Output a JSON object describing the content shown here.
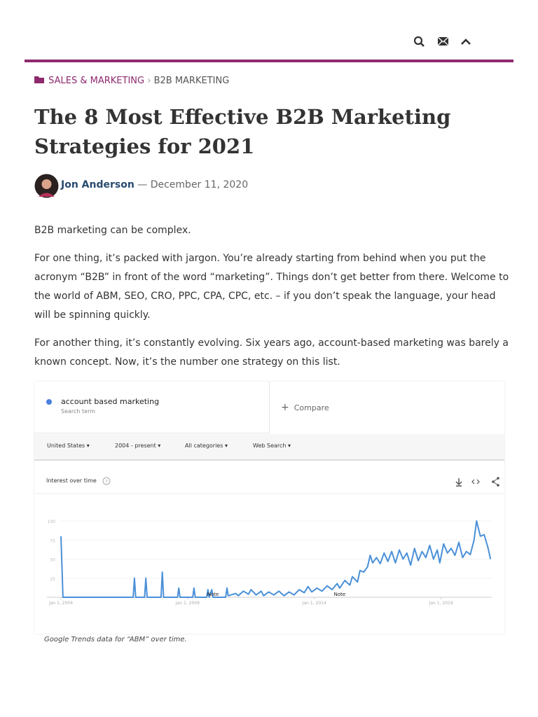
{
  "breadcrumb": {
    "category": "SALES & MARKETING",
    "subcategory": "B2B MARKETING"
  },
  "article": {
    "title": "The 8 Most Effective B2B Marketing Strategies for 2021",
    "author": "Jon Anderson",
    "date": "— December 11, 2020",
    "paragraphs": [
      "B2B marketing can be complex.",
      "For one thing, it’s packed with jargon. You’re already starting from behind when you put the acronym “B2B” in front of the word “marketing”. Things don’t get better from there. Welcome to the world of ABM, SEO, CRO, PPC, CPA, CPC, etc. – if you don’t speak the language, your head will be spinning quickly.",
      "For another thing, it’s constantly evolving. Six years ago, account-based marketing was barely a known concept. Now, it’s the number one strategy on this list."
    ],
    "caption": "Google Trends data for “ABM” over time."
  },
  "trends": {
    "search_term": "account based marketing",
    "search_term_label": "Search term",
    "compare": "Compare",
    "filters": [
      "United States",
      "2004 - present",
      "All categories",
      "Web Search"
    ]
  },
  "chart_data": {
    "type": "line",
    "title": "Interest over time",
    "color": "#4a90d9",
    "x": [
      2004.0,
      2004.08,
      2006.85,
      2006.9,
      2006.95,
      2007.3,
      2007.35,
      2007.4,
      2007.95,
      2008.0,
      2008.05,
      2008.6,
      2008.65,
      2008.7,
      2009.2,
      2009.25,
      2009.3,
      2009.75,
      2009.8,
      2009.85,
      2009.95,
      2010.0,
      2010.5,
      2010.55,
      2010.6,
      2010.9,
      2011.0,
      2011.2,
      2011.4,
      2011.5,
      2011.7,
      2011.9,
      2012.0,
      2012.2,
      2012.4,
      2012.6,
      2012.8,
      2013.0,
      2013.2,
      2013.4,
      2013.6,
      2013.75,
      2013.9,
      2014.1,
      2014.3,
      2014.5,
      2014.7,
      2014.9,
      2015.0,
      2015.2,
      2015.4,
      2015.5,
      2015.7,
      2015.8,
      2015.95,
      2016.1,
      2016.2,
      2016.3,
      2016.45,
      2016.6,
      2016.75,
      2016.9,
      2017.05,
      2017.2,
      2017.35,
      2017.5,
      2017.65,
      2017.8,
      2017.95,
      2018.1,
      2018.25,
      2018.4,
      2018.55,
      2018.7,
      2018.85,
      2018.95,
      2019.1,
      2019.25,
      2019.4,
      2019.55,
      2019.7,
      2019.85,
      2020.0,
      2020.15,
      2020.3,
      2020.4,
      2020.55,
      2020.7,
      2020.85,
      2020.95
    ],
    "values": [
      80,
      0,
      0,
      25,
      0,
      0,
      25,
      0,
      0,
      33,
      0,
      0,
      12,
      0,
      0,
      12,
      0,
      0,
      10,
      0,
      10,
      0,
      0,
      12,
      2,
      5,
      2,
      8,
      4,
      10,
      3,
      8,
      2,
      7,
      3,
      8,
      2,
      7,
      3,
      10,
      6,
      14,
      7,
      12,
      8,
      15,
      10,
      18,
      12,
      22,
      16,
      27,
      20,
      35,
      33,
      40,
      55,
      45,
      52,
      44,
      58,
      47,
      60,
      45,
      62,
      50,
      58,
      42,
      64,
      48,
      60,
      52,
      68,
      50,
      62,
      45,
      70,
      58,
      64,
      55,
      72,
      52,
      60,
      56,
      75,
      100,
      80,
      82,
      65,
      50
    ],
    "xlim": [
      2004,
      2021
    ],
    "xticks": [
      {
        "value": 2004,
        "label": "Jan 1, 2004"
      },
      {
        "value": 2009,
        "label": "Jan 1, 2009"
      },
      {
        "value": 2014,
        "label": "Jan 1, 2014"
      },
      {
        "value": 2019,
        "label": "Jan 1, 2019"
      }
    ],
    "ylim": [
      0,
      100
    ],
    "yticks": [
      25,
      50,
      75,
      100
    ],
    "grid": true,
    "annotations": [
      {
        "x": 2010.0,
        "text": "Note"
      },
      {
        "x": 2015.0,
        "text": "Note"
      }
    ]
  }
}
